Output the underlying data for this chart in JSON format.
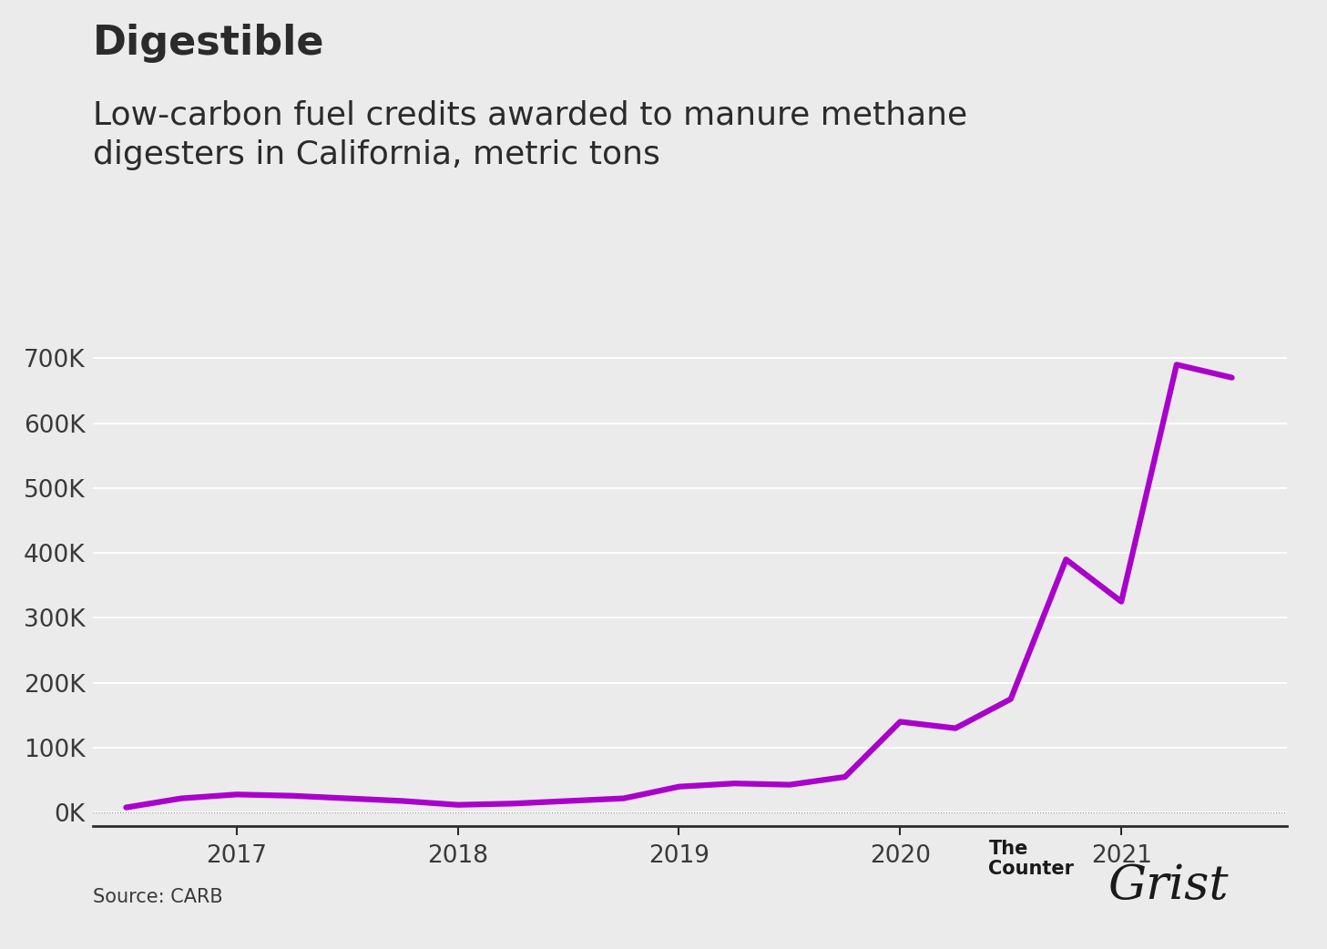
{
  "title": "Digestible",
  "subtitle": "Low-carbon fuel credits awarded to manure methane\ndigesters in California, metric tons",
  "source": "Source: CARB",
  "background_color": "#ebebeb",
  "line_color": "#aa00cc",
  "line_width": 4.5,
  "x_values": [
    2016.5,
    2016.75,
    2017.0,
    2017.25,
    2017.5,
    2017.75,
    2018.0,
    2018.25,
    2018.5,
    2018.75,
    2019.0,
    2019.25,
    2019.5,
    2019.75,
    2020.0,
    2020.25,
    2020.5,
    2020.75,
    2021.0,
    2021.25,
    2021.5
  ],
  "y_values": [
    8000,
    22000,
    28000,
    26000,
    22000,
    18000,
    12000,
    14000,
    18000,
    22000,
    40000,
    45000,
    43000,
    55000,
    140000,
    130000,
    175000,
    390000,
    325000,
    690000,
    670000
  ],
  "ytick_values": [
    0,
    100000,
    200000,
    300000,
    400000,
    500000,
    600000,
    700000
  ],
  "ytick_labels": [
    "0K",
    "100K",
    "200K",
    "300K",
    "400K",
    "500K",
    "600K",
    "700K"
  ],
  "xtick_values": [
    2017,
    2018,
    2019,
    2020,
    2021
  ],
  "xlim": [
    2016.35,
    2021.75
  ],
  "ylim": [
    -20000,
    740000
  ],
  "title_fontsize": 32,
  "subtitle_fontsize": 26,
  "tick_fontsize": 19,
  "source_fontsize": 15,
  "title_color": "#2b2b2b",
  "subtitle_color": "#2b2b2b",
  "tick_color": "#3a3a3a",
  "grid_color": "#ffffff",
  "axis_color": "#2b2b2b"
}
